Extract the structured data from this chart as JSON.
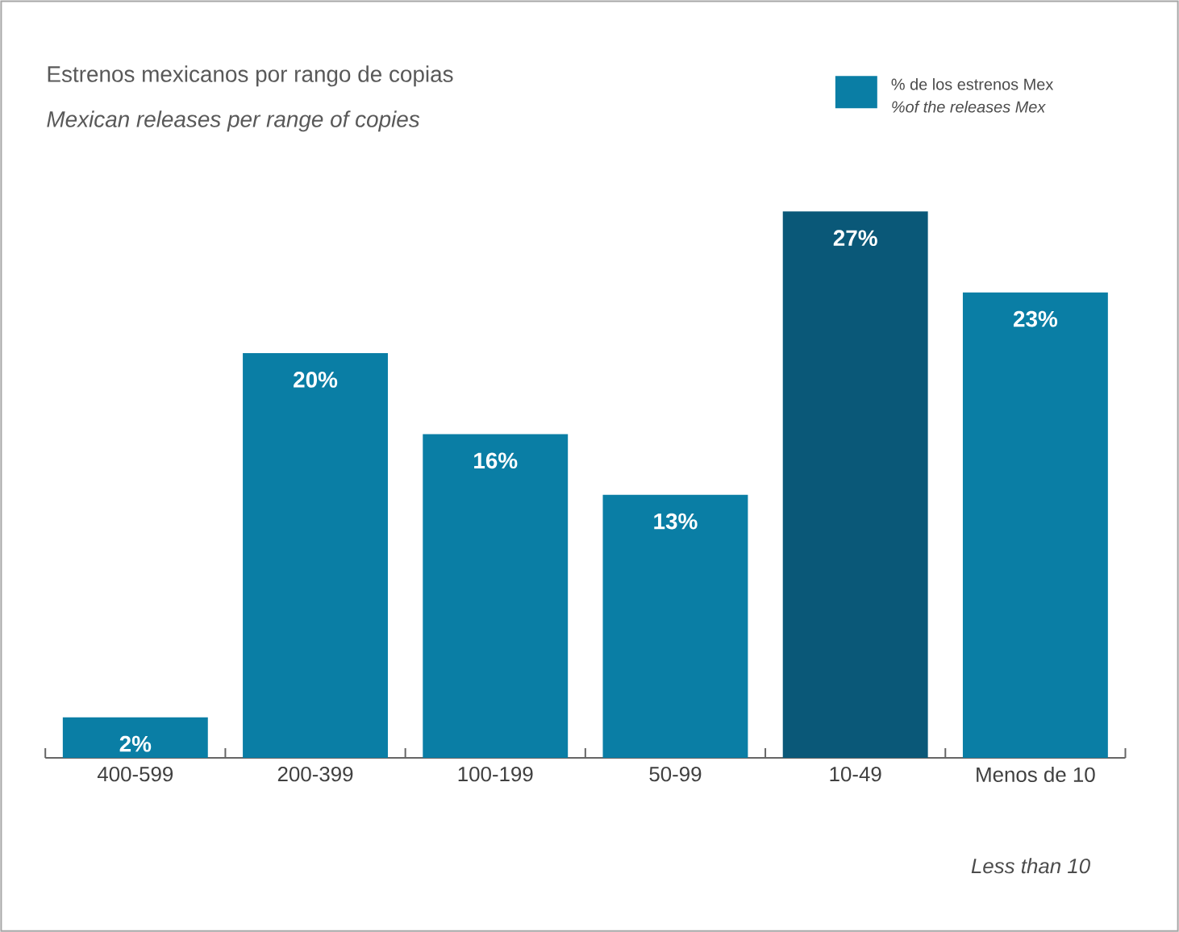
{
  "chart_data": {
    "type": "bar",
    "title": "Estrenos mexicanos por rango de copias",
    "subtitle": "Mexican releases per range of copies",
    "categories": [
      "400-599",
      "200-399",
      "100-199",
      "50-99",
      "10-49",
      "Menos de 10"
    ],
    "series": [
      {
        "name": "% de los estrenos Mex",
        "color": "#0a7ea5",
        "colors": [
          "#0a7ea5",
          "#0a7ea5",
          "#0a7ea5",
          "#0a7ea5",
          "#0a5878",
          "#0a7ea5"
        ],
        "values": [
          2,
          20,
          16,
          13,
          27,
          23
        ],
        "value_labels": [
          "2%",
          "20%",
          "16%",
          "13%",
          "27%",
          "23%"
        ]
      }
    ],
    "annotations": [
      "%of the releases Mex",
      "Less than 10"
    ],
    "legend": "top right"
  }
}
